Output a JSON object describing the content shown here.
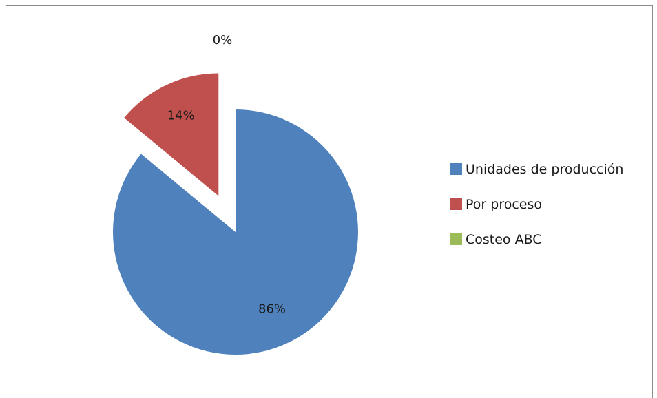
{
  "chart_data": {
    "type": "pie",
    "exploded": true,
    "legend_position": "right",
    "series": [
      {
        "categories": [
          "Unidades de producción",
          "Por proceso",
          "Costeo ABC"
        ],
        "values": [
          86,
          14,
          0
        ],
        "labels": [
          "86%",
          "14%",
          "0%"
        ],
        "colors": [
          "#4F81BD",
          "#C0504D",
          "#9BBB59"
        ]
      }
    ]
  },
  "legend": {
    "items": [
      {
        "label": "Unidades de producción",
        "color": "#4F81BD"
      },
      {
        "label": "Por proceso",
        "color": "#C0504D"
      },
      {
        "label": "Costeo ABC",
        "color": "#9BBB59"
      }
    ]
  }
}
